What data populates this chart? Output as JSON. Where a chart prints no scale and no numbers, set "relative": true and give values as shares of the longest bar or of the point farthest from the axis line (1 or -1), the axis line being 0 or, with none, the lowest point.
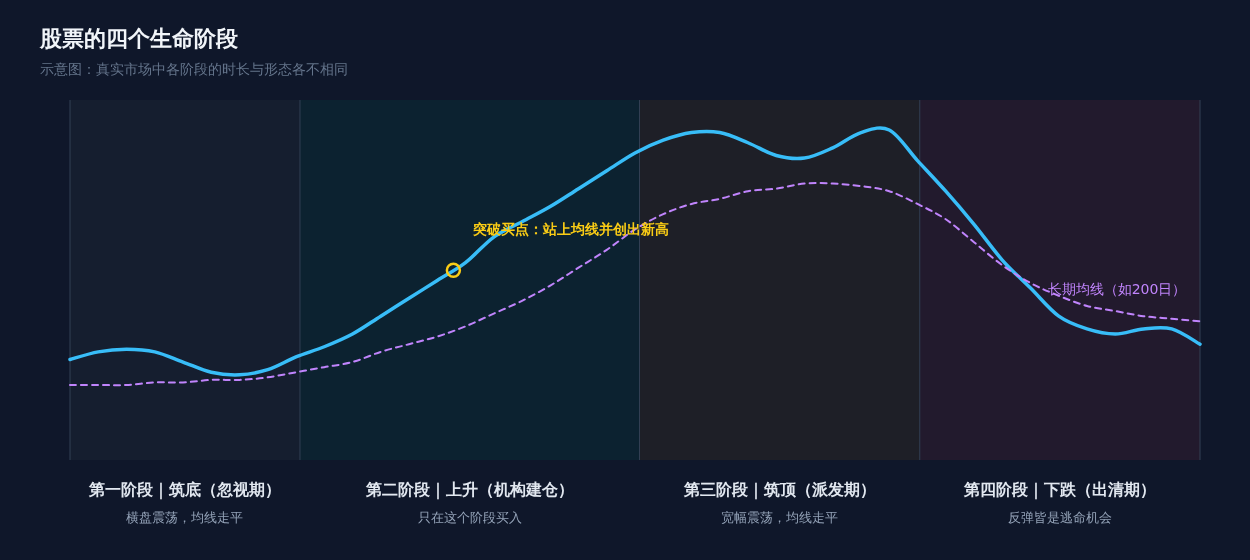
{
  "chart_data": {
    "type": "line",
    "title": "股票的四个生命阶段",
    "subtitle": "示意图：真实市场中各阶段的时长与形态各不相同",
    "relative": true,
    "categories": [
      null,
      null,
      null,
      null,
      null,
      null,
      null,
      null,
      null,
      null,
      null,
      null,
      null,
      null,
      null,
      null,
      null,
      null,
      null,
      null,
      null,
      null,
      null,
      null,
      null,
      null,
      null,
      null,
      null,
      null,
      null,
      null,
      null,
      null,
      null,
      null,
      null,
      null,
      null,
      null,
      null
    ],
    "series": [
      {
        "color": "#38bdf8",
        "line_style": "solid",
        "values": [
          0.1,
          0.13,
          0.14,
          0.13,
          0.09,
          0.05,
          0.04,
          0.06,
          0.11,
          0.15,
          0.2,
          0.27,
          0.34,
          0.41,
          0.48,
          0.58,
          0.64,
          0.7,
          0.77,
          0.84,
          0.91,
          0.96,
          0.99,
          0.99,
          0.95,
          0.9,
          0.89,
          0.93,
          0.99,
          1.0,
          0.88,
          0.76,
          0.63,
          0.49,
          0.38,
          0.27,
          0.22,
          0.2,
          0.22,
          0.22,
          0.16
        ]
      },
      {
        "name": "长期均线（如200日）",
        "color": "#c084fc",
        "line_style": "dashed",
        "values": [
          0.0,
          0.0,
          0.0,
          0.01,
          0.01,
          0.02,
          0.02,
          0.03,
          0.05,
          0.07,
          0.09,
          0.13,
          0.16,
          0.19,
          0.23,
          0.28,
          0.33,
          0.39,
          0.46,
          0.53,
          0.61,
          0.67,
          0.71,
          0.73,
          0.76,
          0.77,
          0.79,
          0.79,
          0.78,
          0.76,
          0.71,
          0.65,
          0.56,
          0.47,
          0.4,
          0.35,
          0.31,
          0.29,
          0.27,
          0.26,
          0.25
        ]
      }
    ],
    "grid": "x",
    "annotations": [
      "第一阶段｜筑底（忽视期）",
      "第二阶段｜上升（机构建仓）",
      "第三阶段｜筑顶（派发期）",
      "第四阶段｜下跌（出清期）",
      "横盘震荡，均线走平",
      "只在这个阶段买入",
      "宽幅震荡，均线走平",
      "反弹皆是逃命机会",
      {
        "text": "突破买点：站上均线并创出新高",
        "y": 0.45
      }
    ]
  }
}
